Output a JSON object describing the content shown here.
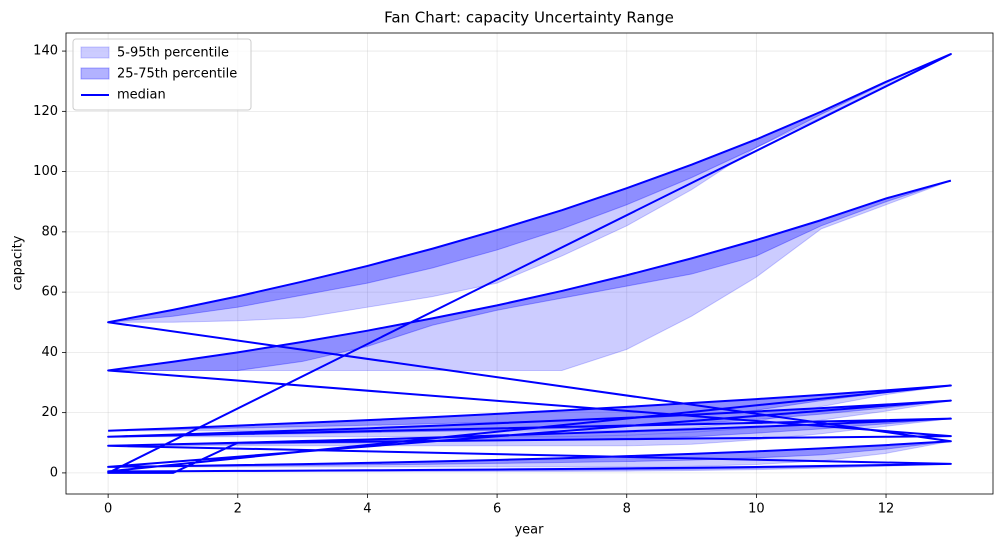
{
  "chart_data": {
    "type": "fan",
    "title": "Fan Chart: capacity Uncertainty Range",
    "x_label": "year",
    "y_label": "capacity",
    "x": [
      0,
      1,
      2,
      3,
      4,
      5,
      6,
      7,
      8,
      9,
      10,
      11,
      12,
      13,
      0,
      1,
      2,
      3,
      4,
      5,
      6,
      7,
      8,
      9,
      10,
      11,
      12,
      13,
      0,
      1,
      2,
      3,
      4,
      5,
      6,
      7,
      8,
      9,
      10,
      11,
      12,
      13,
      0,
      1,
      2,
      3,
      4,
      5,
      6,
      7,
      8,
      9,
      10,
      11,
      12,
      13,
      0,
      1,
      2,
      3,
      4,
      5,
      6,
      7,
      8,
      9,
      10,
      11,
      12,
      13,
      0,
      1,
      2,
      3,
      4,
      5,
      6,
      7,
      8,
      9,
      10,
      11,
      12,
      13,
      0,
      1,
      2,
      3,
      4,
      5,
      6,
      7,
      8,
      9,
      10,
      11,
      12,
      13,
      0,
      1,
      2,
      3,
      4,
      5,
      6,
      7,
      8,
      9,
      10,
      11,
      12,
      13
    ],
    "bands": [
      {
        "name": "5-95th percentile",
        "color": "#0000ff",
        "opacity": 0.2,
        "lower": [
          14,
          14,
          14,
          14,
          14,
          14,
          14,
          14,
          14,
          15,
          17,
          22,
          26,
          29,
          0.5,
          0.5,
          0.5,
          0.5,
          0.5,
          0.5,
          0.5,
          0.5,
          0.6,
          0.8,
          1.1,
          1.6,
          2.2,
          3,
          9,
          9,
          9,
          9,
          9,
          9,
          9,
          9,
          9,
          9.5,
          11,
          13,
          15.5,
          18,
          12,
          12,
          12,
          12,
          12,
          12,
          12,
          12,
          12.5,
          13.5,
          15,
          17.5,
          20.5,
          24,
          2,
          2,
          2,
          2,
          2,
          2,
          2,
          2,
          2,
          2.2,
          2.8,
          4,
          6.5,
          10.5,
          50,
          50,
          50.5,
          51.5,
          55,
          58.5,
          63,
          72,
          82,
          94,
          108,
          118,
          128.5,
          139,
          0,
          0,
          10,
          10.2,
          10.4,
          10.6,
          10.8,
          11,
          11.2,
          11.4,
          11.6,
          11.8,
          12,
          12.2,
          34,
          34,
          34,
          34,
          34,
          34,
          34,
          34,
          41,
          52,
          65,
          81,
          89,
          97
        ],
        "upper": [
          14,
          14.8,
          15.7,
          16.6,
          17.5,
          18.5,
          19.6,
          20.7,
          21.9,
          23.2,
          24.5,
          25.9,
          27.4,
          29,
          0.5,
          0.57,
          0.66,
          0.76,
          0.87,
          1,
          1.14,
          1.31,
          1.5,
          1.73,
          1.98,
          2.28,
          2.61,
          3,
          9,
          9.5,
          10,
          10.6,
          11.1,
          11.7,
          12.4,
          13.1,
          13.8,
          14.5,
          15.3,
          16.2,
          17.1,
          18,
          12,
          12.7,
          13.4,
          14.1,
          14.8,
          15.6,
          16.5,
          17.4,
          18.3,
          19.3,
          20.4,
          21.5,
          22.7,
          24,
          2,
          2.27,
          2.58,
          2.93,
          3.33,
          3.78,
          4.3,
          4.88,
          5.55,
          6.3,
          7.16,
          8.13,
          9.24,
          10.5,
          50,
          54.1,
          58.6,
          63.5,
          68.7,
          74.4,
          80.6,
          87.2,
          94.5,
          102.3,
          110.7,
          119.9,
          129.8,
          139,
          0,
          0,
          10,
          10.2,
          10.4,
          10.6,
          10.8,
          11,
          11.2,
          11.4,
          11.6,
          11.8,
          12,
          12.2,
          34,
          36.9,
          40,
          43.5,
          47.2,
          51.3,
          55.6,
          60.4,
          65.6,
          71.2,
          77.3,
          83.9,
          91.1,
          97
        ]
      },
      {
        "name": "25-75th percentile",
        "color": "#0000ff",
        "opacity": 0.3,
        "lower": [
          14,
          14.4,
          14.9,
          15.3,
          15.8,
          16.3,
          16.8,
          17.4,
          18,
          19.1,
          20.8,
          24,
          26.7,
          29,
          0.5,
          0.54,
          0.58,
          0.63,
          0.69,
          0.75,
          0.82,
          0.9,
          1.05,
          1.27,
          1.54,
          1.94,
          2.4,
          3,
          9,
          9.25,
          9.5,
          9.8,
          10,
          10.4,
          10.7,
          11,
          11.4,
          12,
          13.2,
          14.6,
          16.3,
          18,
          12,
          12.35,
          12.7,
          13,
          13.4,
          13.8,
          14.2,
          14.7,
          15.4,
          16.4,
          17.7,
          19.5,
          21.6,
          24,
          2,
          2.13,
          2.29,
          2.46,
          2.66,
          2.89,
          3.15,
          3.44,
          3.78,
          4.25,
          5,
          6,
          7.9,
          10.5,
          50,
          52,
          55,
          59,
          63,
          68,
          74,
          81,
          89,
          98,
          108,
          119,
          129.5,
          139,
          0,
          0,
          10,
          10.2,
          10.4,
          10.6,
          10.8,
          11,
          11.2,
          11.4,
          11.6,
          11.8,
          12,
          12.2,
          34,
          34,
          34,
          37,
          42,
          49,
          54,
          58,
          62,
          66,
          72,
          82,
          90,
          97
        ],
        "upper": [
          14,
          14.8,
          15.7,
          16.6,
          17.5,
          18.5,
          19.6,
          20.7,
          21.9,
          23.2,
          24.5,
          25.9,
          27.4,
          29,
          0.5,
          0.57,
          0.66,
          0.76,
          0.87,
          1,
          1.14,
          1.31,
          1.5,
          1.73,
          1.98,
          2.28,
          2.61,
          3,
          9,
          9.5,
          10,
          10.6,
          11.1,
          11.7,
          12.4,
          13.1,
          13.8,
          14.5,
          15.3,
          16.2,
          17.1,
          18,
          12,
          12.7,
          13.4,
          14.1,
          14.8,
          15.6,
          16.5,
          17.4,
          18.3,
          19.3,
          20.4,
          21.5,
          22.7,
          24,
          2,
          2.27,
          2.58,
          2.93,
          3.33,
          3.78,
          4.3,
          4.88,
          5.55,
          6.3,
          7.16,
          8.13,
          9.24,
          10.5,
          50,
          54.1,
          58.6,
          63.5,
          68.7,
          74.4,
          80.6,
          87.2,
          94.5,
          102.3,
          110.7,
          119.9,
          129.8,
          139,
          0,
          0,
          10,
          10.2,
          10.4,
          10.6,
          10.8,
          11,
          11.2,
          11.4,
          11.6,
          11.8,
          12,
          12.2,
          34,
          36.9,
          40,
          43.5,
          47.2,
          51.3,
          55.6,
          60.4,
          65.6,
          71.2,
          77.3,
          83.9,
          91.1,
          97
        ]
      }
    ],
    "series": [
      {
        "name": "median",
        "color": "#0000ff",
        "values": [
          14,
          14.8,
          15.7,
          16.6,
          17.5,
          18.5,
          19.6,
          20.7,
          21.9,
          23.2,
          24.5,
          25.9,
          27.4,
          29,
          0.5,
          0.57,
          0.66,
          0.76,
          0.87,
          1,
          1.14,
          1.31,
          1.5,
          1.73,
          1.98,
          2.28,
          2.61,
          3,
          9,
          9.5,
          10,
          10.6,
          11.1,
          11.7,
          12.4,
          13.1,
          13.8,
          14.5,
          15.3,
          16.2,
          17.1,
          18,
          12,
          12.7,
          13.4,
          14.1,
          14.8,
          15.6,
          16.5,
          17.4,
          18.3,
          19.3,
          20.4,
          21.5,
          22.7,
          24,
          2,
          2.27,
          2.58,
          2.93,
          3.33,
          3.78,
          4.3,
          4.88,
          5.55,
          6.3,
          7.16,
          8.13,
          9.24,
          10.5,
          50,
          54.1,
          58.6,
          63.5,
          68.7,
          74.4,
          80.6,
          87.2,
          94.5,
          102.3,
          110.7,
          119.9,
          129.8,
          139,
          0,
          0,
          10,
          10.2,
          10.4,
          10.6,
          10.8,
          11,
          11.2,
          11.4,
          11.6,
          11.8,
          12,
          12.2,
          34,
          36.9,
          40,
          43.5,
          47.2,
          51.3,
          55.6,
          60.4,
          65.6,
          71.2,
          77.3,
          83.9,
          91.1,
          97
        ]
      }
    ],
    "xlim": [
      -0.65,
      13.65
    ],
    "ylim": [
      -7,
      146
    ],
    "xticks": [
      0,
      2,
      4,
      6,
      8,
      10,
      12
    ],
    "yticks": [
      0,
      20,
      40,
      60,
      80,
      100,
      120,
      140
    ],
    "grid": true,
    "legend": "upper left"
  }
}
